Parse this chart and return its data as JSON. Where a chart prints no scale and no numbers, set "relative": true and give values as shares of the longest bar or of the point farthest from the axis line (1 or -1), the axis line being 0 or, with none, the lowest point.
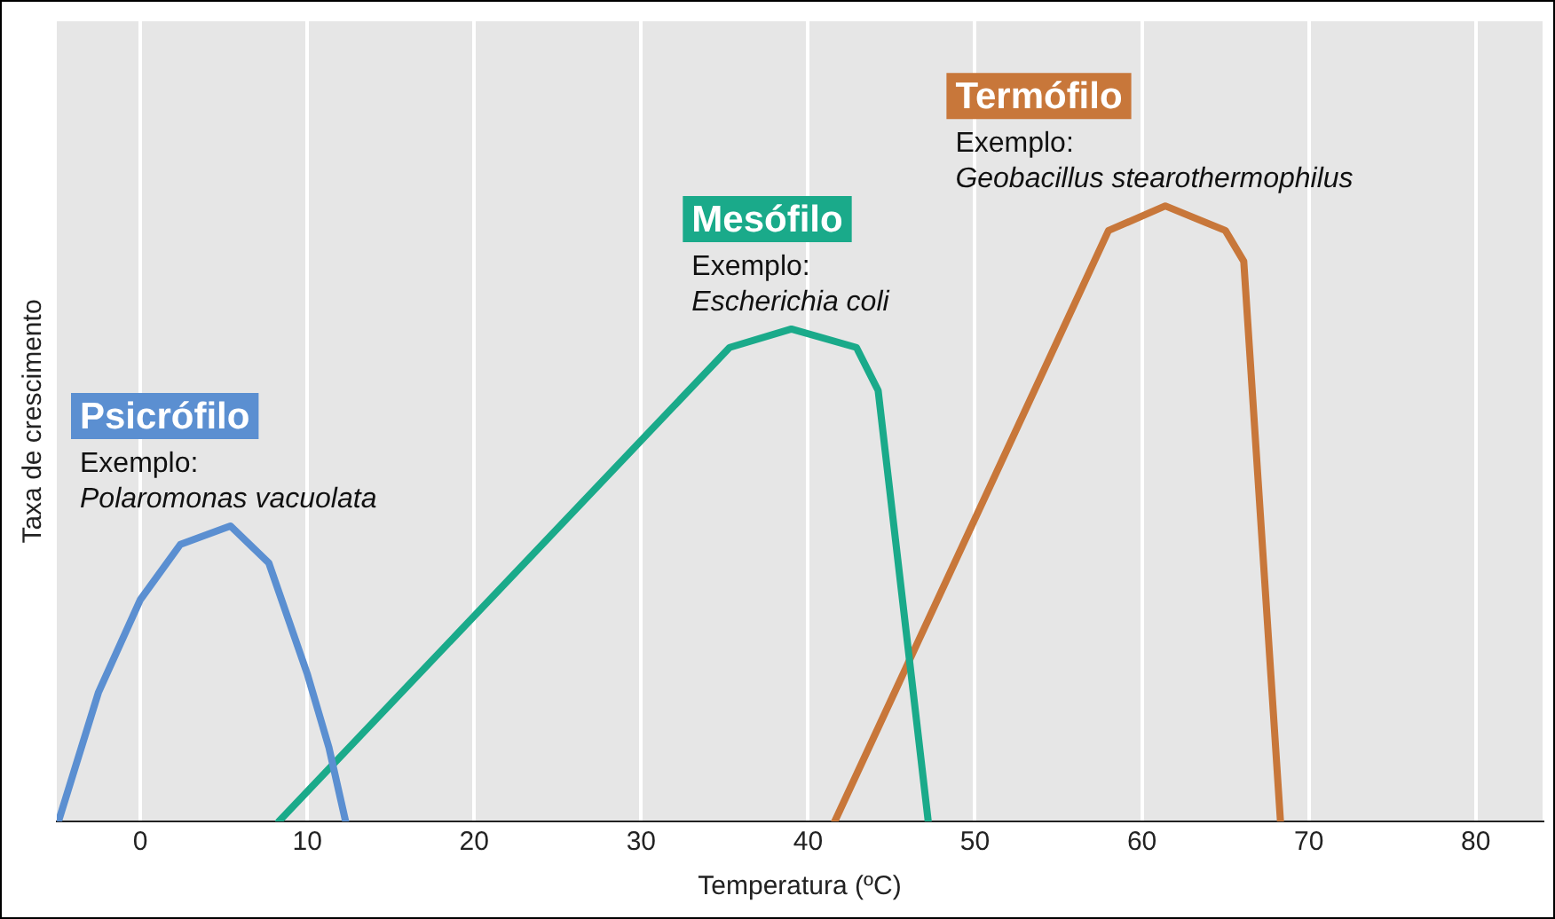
{
  "chart_data": {
    "type": "line",
    "relative": true,
    "xlabel": "Temperatura (ºC)",
    "ylabel": "Taxa de crescimento",
    "xlim": [
      -5,
      84
    ],
    "xticks": [
      0,
      10,
      20,
      30,
      40,
      50,
      60,
      70,
      80
    ],
    "grid": "x",
    "legend": false,
    "marker": "none",
    "line_style": "solid",
    "series": [
      {
        "name": "Psicrófilo",
        "color": "#5b8fd1",
        "x": [
          -4.9,
          -2.5,
          0,
          2.4,
          5.4,
          7.7,
          10,
          11.3,
          12.3
        ],
        "values": [
          0,
          0.21,
          0.36,
          0.45,
          0.48,
          0.42,
          0.24,
          0.12,
          0
        ]
      },
      {
        "name": "Mesófilo",
        "color": "#1aaa8a",
        "x": [
          8.3,
          35.3,
          39,
          42.9,
          44.2,
          47.2
        ],
        "values": [
          0,
          0.77,
          0.8,
          0.77,
          0.7,
          0
        ]
      },
      {
        "name": "Termófilo",
        "color": "#c8773a",
        "x": [
          41.6,
          58,
          61.4,
          65,
          66.1,
          68.3
        ],
        "values": [
          0,
          0.96,
          1,
          0.96,
          0.91,
          0
        ]
      }
    ],
    "annotations": [
      "Exemplo:\nPolaromonas vacuolata",
      "Exemplo:\nEscherichia coli",
      "Exemplo:\nGeobacillus stearothermophilus"
    ]
  }
}
